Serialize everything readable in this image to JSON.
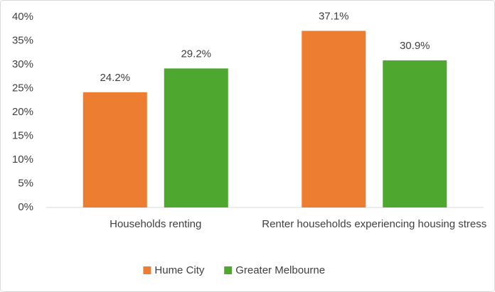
{
  "chart_data": {
    "type": "bar",
    "categories": [
      "Households renting",
      "Renter households experiencing housing stress"
    ],
    "series": [
      {
        "name": "Hume City",
        "color": "#ED7D31",
        "values": [
          24.2,
          37.1
        ],
        "value_labels": [
          "24.2%",
          "37.1%"
        ]
      },
      {
        "name": "Greater Melbourne",
        "color": "#4EA72E",
        "values": [
          29.2,
          30.9
        ],
        "value_labels": [
          "29.2%",
          "30.9%"
        ]
      }
    ],
    "ylim": [
      0,
      40
    ],
    "yticks": [
      {
        "value": 0,
        "label": "0%"
      },
      {
        "value": 5,
        "label": "5%"
      },
      {
        "value": 10,
        "label": "10%"
      },
      {
        "value": 15,
        "label": "15%"
      },
      {
        "value": 20,
        "label": "20%"
      },
      {
        "value": 25,
        "label": "25%"
      },
      {
        "value": 30,
        "label": "30%"
      },
      {
        "value": 35,
        "label": "35%"
      },
      {
        "value": 40,
        "label": "40%"
      }
    ],
    "grid": false,
    "legend": "bottom"
  }
}
